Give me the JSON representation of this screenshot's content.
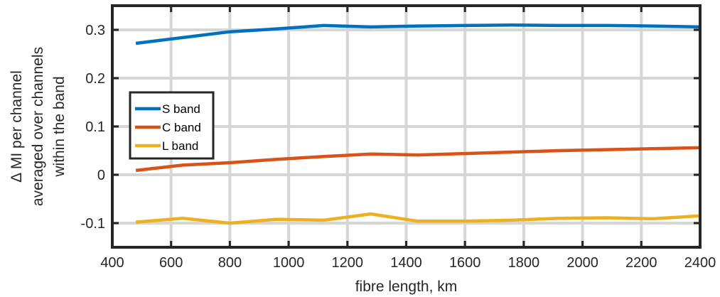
{
  "chart_data": {
    "type": "line",
    "xlabel": "fibre length, km",
    "ylabel_lines": [
      "Δ MI per channel",
      "averaged over channels",
      "within the band"
    ],
    "xlim": [
      400,
      2400
    ],
    "ylim": [
      -0.15,
      0.35
    ],
    "xticks": [
      400,
      600,
      800,
      1000,
      1200,
      1400,
      1600,
      1800,
      2000,
      2200,
      2400
    ],
    "yticks": [
      -0.1,
      0,
      0.1,
      0.2,
      0.3
    ],
    "ytick_labels": [
      "-0.1",
      "0",
      "0.1",
      "0.2",
      "0.3"
    ],
    "grid": true,
    "legend_position": "center-left",
    "x": [
      480,
      640,
      800,
      960,
      1120,
      1280,
      1440,
      1600,
      1760,
      1920,
      2080,
      2240,
      2400
    ],
    "series": [
      {
        "name": "S band",
        "color": "#0072BD",
        "values": [
          0.272,
          0.284,
          0.296,
          0.302,
          0.309,
          0.306,
          0.308,
          0.309,
          0.31,
          0.309,
          0.309,
          0.308,
          0.306
        ]
      },
      {
        "name": "C band",
        "color": "#D95319",
        "values": [
          0.009,
          0.02,
          0.025,
          0.032,
          0.038,
          0.043,
          0.041,
          0.044,
          0.047,
          0.05,
          0.052,
          0.054,
          0.056
        ]
      },
      {
        "name": "L band",
        "color": "#EDB120",
        "values": [
          -0.098,
          -0.09,
          -0.1,
          -0.092,
          -0.094,
          -0.081,
          -0.096,
          -0.096,
          -0.094,
          -0.09,
          -0.089,
          -0.091,
          -0.085
        ]
      }
    ]
  }
}
